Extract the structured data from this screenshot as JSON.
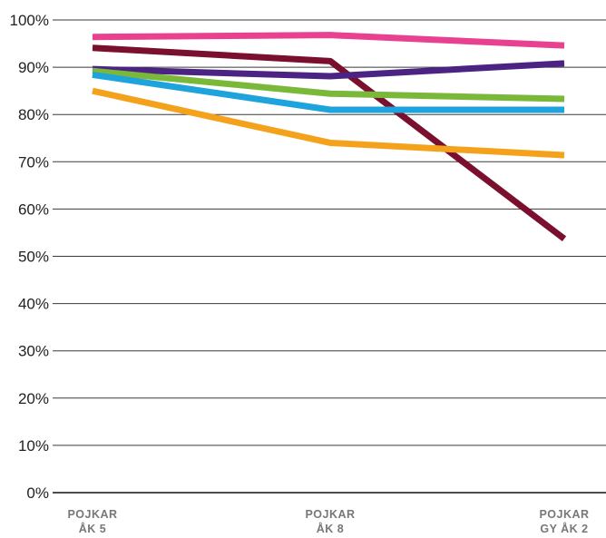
{
  "chart_data": {
    "type": "line",
    "title": "",
    "xlabel": "",
    "ylabel": "",
    "categories": [
      [
        "POJKAR",
        "ÅK 5"
      ],
      [
        "POJKAR",
        "ÅK 8"
      ],
      [
        "POJKAR",
        "GY ÅK 2"
      ]
    ],
    "ylim": [
      0,
      100
    ],
    "y_ticks": [
      {
        "value": 0,
        "label": "0%"
      },
      {
        "value": 10,
        "label": "10%"
      },
      {
        "value": 20,
        "label": "20%"
      },
      {
        "value": 30,
        "label": "30%"
      },
      {
        "value": 40,
        "label": "40%"
      },
      {
        "value": 50,
        "label": "50%"
      },
      {
        "value": 60,
        "label": "60%"
      },
      {
        "value": 70,
        "label": "70%"
      },
      {
        "value": 80,
        "label": "80%"
      },
      {
        "value": 90,
        "label": "90%"
      },
      {
        "value": 100,
        "label": "100%"
      }
    ],
    "grid": true,
    "legend": "none",
    "series": [
      {
        "color": "#e8418f",
        "values": [
          96.4,
          96.8,
          94.6
        ]
      },
      {
        "color": "#7a0f2e",
        "values": [
          94.1,
          91.3,
          53.7
        ]
      },
      {
        "color": "#4b2382",
        "values": [
          89.6,
          88.1,
          90.8
        ]
      },
      {
        "color": "#7ab83a",
        "values": [
          89.2,
          84.4,
          83.3
        ]
      },
      {
        "color": "#1ea3dc",
        "values": [
          88.4,
          81.0,
          81.0
        ]
      },
      {
        "color": "#f4a21b",
        "values": [
          85.0,
          74.0,
          71.4
        ]
      }
    ]
  }
}
